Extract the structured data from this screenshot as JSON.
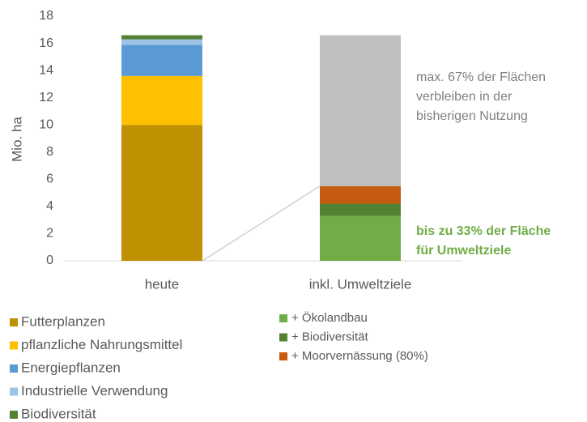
{
  "chart_data": {
    "type": "stacked_bar",
    "y_label": "Mio. ha",
    "categories": [
      "heute",
      "inkl. Umweltziele"
    ],
    "series": [
      {
        "name": "Futterplanzen",
        "color": "#bf9000",
        "values": [
          10,
          null
        ]
      },
      {
        "name": "pflanzliche Nahrungsmittel",
        "color": "#ffc000",
        "values": [
          3.6,
          null
        ]
      },
      {
        "name": "Energiepflanzen",
        "color": "#5b9bd5",
        "values": [
          2.3,
          null
        ]
      },
      {
        "name": "Industrielle Verwendung",
        "color": "#9dc3e6",
        "values": [
          0.4,
          null
        ]
      },
      {
        "name": "Biodiversität",
        "color": "#548235",
        "values": [
          0.3,
          null
        ]
      },
      {
        "name": "+ Ökolandbau",
        "color": "#70ad47",
        "values": [
          null,
          3.3
        ]
      },
      {
        "name": "+ Biodiversität",
        "color": "#548235",
        "values": [
          null,
          0.9
        ]
      },
      {
        "name": "+ Moorvernässung (80%)",
        "color": "#c55a11",
        "values": [
          null,
          1.3
        ]
      },
      {
        "color": "#bfbfbf",
        "values": [
          null,
          11.1
        ]
      }
    ],
    "ylim": [
      0,
      18
    ],
    "yticks": [
      0,
      2,
      4,
      6,
      8,
      10,
      12,
      14,
      16,
      18
    ],
    "grid": false,
    "annotations": [
      {
        "lines": [
          "max. 67% der Flächen",
          "verbleiben in der",
          "bisherigen Nutzung"
        ],
        "color": "#808080"
      },
      {
        "lines": [
          "bis zu 33% der Fläche",
          "für  Umweltziele"
        ],
        "color": "#70ad47"
      }
    ]
  }
}
